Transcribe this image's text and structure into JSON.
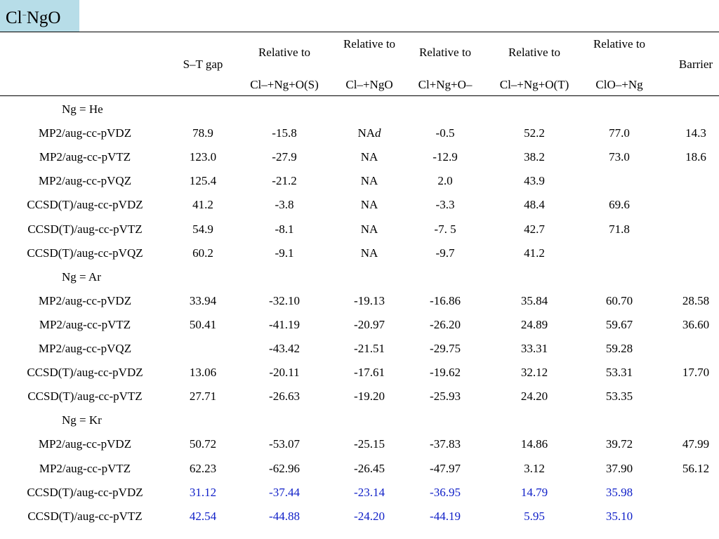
{
  "title": {
    "prefix": "Cl",
    "sup": "−",
    "suffix": "NgO"
  },
  "headers": {
    "st_gap": "S–T gap",
    "rel1_top": "Relative to",
    "rel1_bot": "Cl–+Ng+O(S)",
    "rel2_top": "Relative to",
    "rel2_bot": "Cl–+NgO",
    "rel3_top": "Relative to",
    "rel3_bot": "Cl+Ng+O–",
    "rel4_top": "Relative to",
    "rel4_bot": "Cl–+Ng+O(T)",
    "rel5_top": "Relative to",
    "rel5_bot": "ClO–+Ng",
    "barrier": "Barrier"
  },
  "groups": [
    "Ng = He",
    "Ng = Ar",
    "Ng = Kr"
  ],
  "rows": [
    {
      "method": "MP2/aug-cc-pVDZ",
      "v": [
        "78.9",
        "-15.8",
        "NA",
        "-0.5",
        "52.2",
        "77.0",
        "14.3"
      ],
      "na_suffix": "d",
      "blue": false
    },
    {
      "method": "MP2/aug-cc-pVTZ",
      "v": [
        "123.0",
        "-27.9",
        "NA",
        "-12.9",
        "38.2",
        "73.0",
        "18.6"
      ],
      "blue": false
    },
    {
      "method": "MP2/aug-cc-pVQZ",
      "v": [
        "125.4",
        "-21.2",
        "NA",
        "2.0",
        "43.9",
        "",
        ""
      ],
      "blue": false
    },
    {
      "method": "CCSD(T)/aug-cc-pVDZ",
      "v": [
        "41.2",
        "-3.8",
        "NA",
        "-3.3",
        "48.4",
        "69.6",
        ""
      ],
      "blue": false
    },
    {
      "method": "CCSD(T)/aug-cc-pVTZ",
      "v": [
        "54.9",
        "-8.1",
        "NA",
        "-7. 5",
        "42.7",
        "71.8",
        ""
      ],
      "blue": false
    },
    {
      "method": "CCSD(T)/aug-cc-pVQZ",
      "v": [
        "60.2",
        "-9.1",
        "NA",
        "-9.7",
        "41.2",
        "",
        ""
      ],
      "blue": false
    },
    {
      "method": "MP2/aug-cc-pVDZ",
      "v": [
        "33.94",
        "-32.10",
        "-19.13",
        "-16.86",
        "35.84",
        "60.70",
        "28.58"
      ],
      "blue": false
    },
    {
      "method": "MP2/aug-cc-pVTZ",
      "v": [
        "50.41",
        "-41.19",
        "-20.97",
        "-26.20",
        "24.89",
        "59.67",
        "36.60"
      ],
      "blue": false
    },
    {
      "method": "MP2/aug-cc-pVQZ",
      "v": [
        "",
        "-43.42",
        "-21.51",
        "-29.75",
        "33.31",
        "59.28",
        ""
      ],
      "blue": false
    },
    {
      "method": "CCSD(T)/aug-cc-pVDZ",
      "v": [
        "13.06",
        "-20.11",
        "-17.61",
        "-19.62",
        "32.12",
        "53.31",
        "17.70"
      ],
      "blue": false
    },
    {
      "method": "CCSD(T)/aug-cc-pVTZ",
      "v": [
        "27.71",
        "-26.63",
        "-19.20",
        "-25.93",
        "24.20",
        "53.35",
        ""
      ],
      "blue": false
    },
    {
      "method": "MP2/aug-cc-pVDZ",
      "v": [
        "50.72",
        "-53.07",
        "-25.15",
        "-37.83",
        "14.86",
        "39.72",
        "47.99"
      ],
      "blue": false
    },
    {
      "method": "MP2/aug-cc-pVTZ",
      "v": [
        "62.23",
        "-62.96",
        "-26.45",
        "-47.97",
        "3.12",
        "37.90",
        "56.12"
      ],
      "blue": false
    },
    {
      "method": "CCSD(T)/aug-cc-pVDZ",
      "v": [
        "31.12",
        "-37.44",
        "-23.14",
        "-36.95",
        "14.79",
        "35.98",
        ""
      ],
      "blue": true
    },
    {
      "method": "CCSD(T)/aug-cc-pVTZ",
      "v": [
        "42.54",
        "-44.88",
        "-24.20",
        "-44.19",
        "5.95",
        "35.10",
        ""
      ],
      "blue": true
    }
  ]
}
